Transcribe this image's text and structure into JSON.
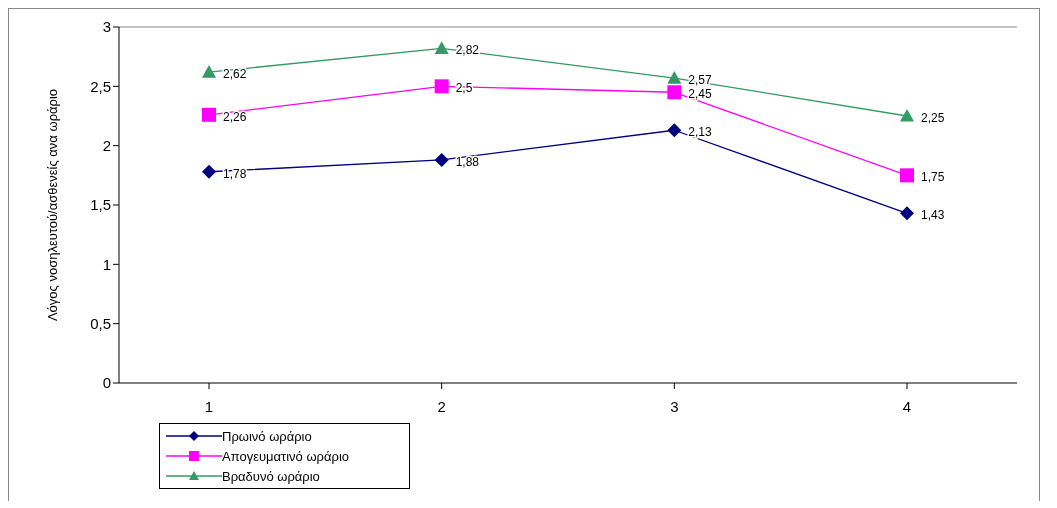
{
  "chart_data": {
    "type": "line",
    "ylabel": "Λόγος νοσηλευτού/ασθενείς ανα ωράριο",
    "categories": [
      "1",
      "2",
      "3",
      "4"
    ],
    "series": [
      {
        "name": "Πρωινό ωράριο",
        "color": "#000080",
        "marker": "diamond",
        "values": [
          1.78,
          1.88,
          2.13,
          1.43
        ],
        "value_labels": [
          "1,78",
          "1,88",
          "2,13",
          "1,43"
        ]
      },
      {
        "name": "Απογευματινό ωράριο",
        "color": "#ff00ff",
        "marker": "square",
        "values": [
          2.26,
          2.5,
          2.45,
          1.75
        ],
        "value_labels": [
          "2,26",
          "2,5",
          "2,45",
          "1,75"
        ]
      },
      {
        "name": "Βραδυνό ωράριο",
        "color": "#339966",
        "marker": "triangle",
        "values": [
          2.62,
          2.82,
          2.57,
          2.25
        ],
        "value_labels": [
          "2,62",
          "2,82",
          "2,57",
          "2,25"
        ]
      }
    ],
    "ylim": [
      0,
      3
    ],
    "yticks": [
      0,
      {
        "value": 0.5,
        "label": "0,5"
      },
      1,
      {
        "value": 1.5,
        "label": "1,5"
      },
      2,
      {
        "value": 2.5,
        "label": "2,5"
      },
      3
    ],
    "legend": "bottom left"
  }
}
